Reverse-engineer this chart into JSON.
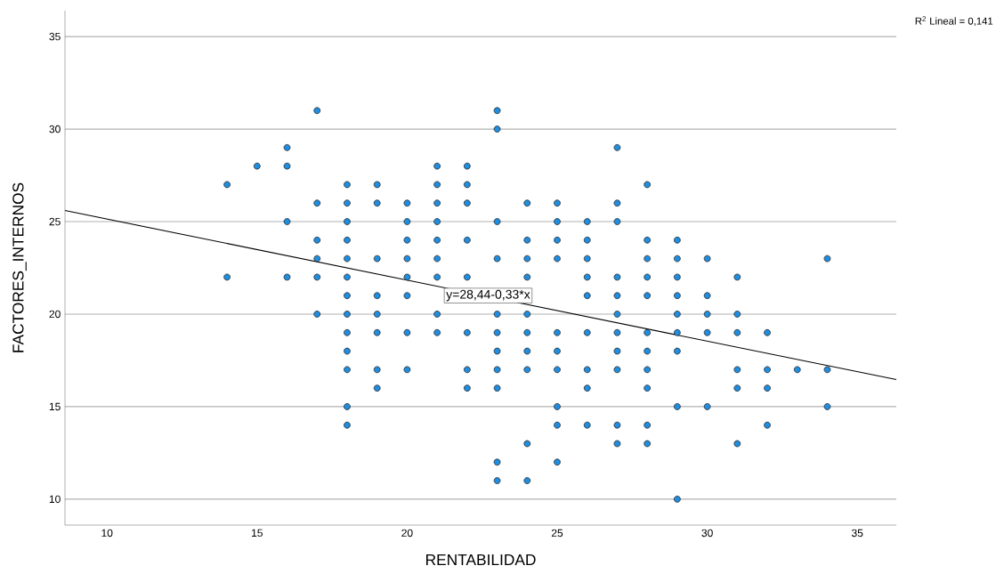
{
  "chart_data": {
    "type": "scatter",
    "xlabel": "RENTABILIDAD",
    "ylabel": "FACTORES_INTERNOS",
    "xlim": [
      8.6,
      36.3
    ],
    "ylim": [
      8.6,
      36.4
    ],
    "xticks": [
      10,
      15,
      20,
      25,
      30,
      35
    ],
    "yticks": [
      10,
      15,
      20,
      25,
      30,
      35
    ],
    "grid": "y",
    "annotations": [
      "R$^{2}$ Lineal = 0,141",
      {
        "text": "y=28,44-0,33*x",
        "x": 22.7,
        "y": 21
      }
    ],
    "series": [
      {
        "color": "#1f8ee0",
        "marker": "circle",
        "x": [
          14,
          14,
          15,
          16,
          16,
          16,
          16,
          17,
          17,
          17,
          17,
          17,
          17,
          18,
          18,
          18,
          18,
          18,
          18,
          18,
          18,
          18,
          18,
          18,
          18,
          18,
          19,
          19,
          19,
          19,
          19,
          19,
          19,
          19,
          20,
          20,
          20,
          20,
          20,
          20,
          20,
          20,
          21,
          21,
          21,
          21,
          21,
          21,
          21,
          21,
          21,
          22,
          22,
          22,
          22,
          22,
          22,
          22,
          22,
          23,
          23,
          23,
          23,
          23,
          23,
          23,
          23,
          23,
          23,
          23,
          24,
          24,
          24,
          24,
          24,
          24,
          24,
          24,
          24,
          24,
          25,
          25,
          25,
          25,
          25,
          25,
          25,
          25,
          25,
          25,
          26,
          26,
          26,
          26,
          26,
          26,
          26,
          26,
          26,
          27,
          27,
          27,
          27,
          27,
          27,
          27,
          27,
          27,
          27,
          27,
          28,
          28,
          28,
          28,
          28,
          28,
          28,
          28,
          28,
          28,
          28,
          29,
          29,
          29,
          29,
          29,
          29,
          29,
          29,
          29,
          30,
          30,
          30,
          30,
          30,
          31,
          31,
          31,
          31,
          31,
          31,
          32,
          32,
          32,
          32,
          33,
          34,
          34,
          34
        ],
        "values": [
          27,
          22,
          28,
          29,
          28,
          25,
          22,
          31,
          26,
          24,
          23,
          22,
          20,
          27,
          26,
          25,
          24,
          23,
          22,
          21,
          20,
          19,
          18,
          17,
          15,
          14,
          27,
          26,
          23,
          21,
          20,
          19,
          17,
          16,
          26,
          25,
          24,
          23,
          22,
          21,
          19,
          17,
          28,
          27,
          26,
          25,
          24,
          23,
          22,
          20,
          19,
          28,
          27,
          26,
          24,
          22,
          19,
          17,
          16,
          31,
          30,
          25,
          23,
          20,
          19,
          18,
          17,
          16,
          12,
          11,
          26,
          24,
          23,
          22,
          20,
          19,
          18,
          17,
          13,
          11,
          26,
          25,
          24,
          23,
          19,
          18,
          17,
          15,
          14,
          12,
          25,
          24,
          23,
          22,
          21,
          19,
          17,
          16,
          14,
          29,
          26,
          25,
          22,
          21,
          20,
          19,
          18,
          17,
          14,
          13,
          27,
          24,
          23,
          22,
          21,
          19,
          18,
          17,
          16,
          14,
          13,
          24,
          23,
          22,
          21,
          20,
          19,
          18,
          15,
          10,
          23,
          21,
          20,
          19,
          15,
          22,
          20,
          19,
          17,
          16,
          13,
          19,
          17,
          16,
          14,
          17,
          23,
          17,
          15
        ]
      },
      {
        "type": "line",
        "color": "#000000",
        "marker": "none",
        "x": [
          8.6,
          36.3
        ],
        "values": [
          25.6,
          16.46
        ]
      }
    ]
  }
}
